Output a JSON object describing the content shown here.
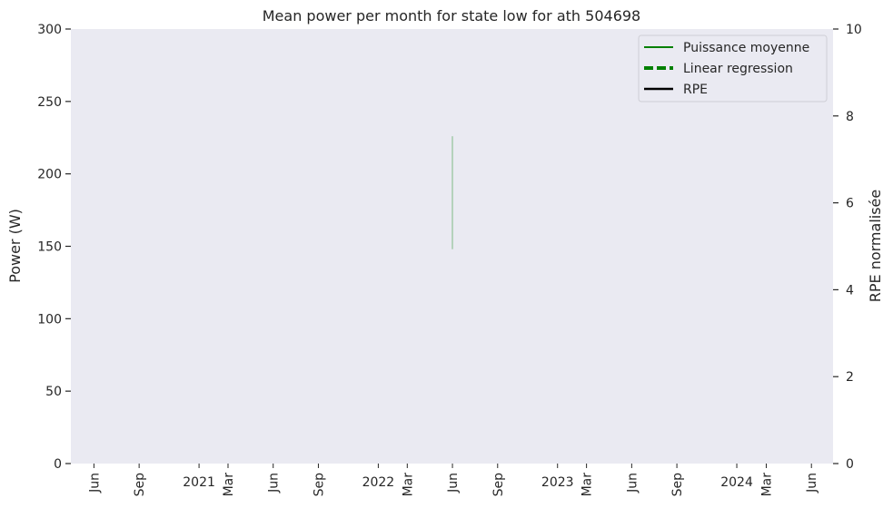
{
  "chart_data": {
    "type": "line",
    "title": "Mean power per month for state low for ath 504698",
    "ylabel": "Power (W)",
    "y2label": "RPE normalisée",
    "ylim": [
      0,
      300
    ],
    "y2lim": [
      0,
      10
    ],
    "yticks": [
      "0",
      "50",
      "100",
      "150",
      "200",
      "250",
      "300"
    ],
    "y2ticks": [
      "0",
      "2",
      "4",
      "6",
      "8",
      "10"
    ],
    "x_range": [
      "2020-04-15",
      "2024-07-15"
    ],
    "xticks": [
      {
        "date": "2020-06-01",
        "label": "Jun",
        "rotated": true
      },
      {
        "date": "2020-09-01",
        "label": "Sep",
        "rotated": true
      },
      {
        "date": "2021-01-01",
        "label": "2021",
        "rotated": false
      },
      {
        "date": "2021-03-01",
        "label": "Mar",
        "rotated": true
      },
      {
        "date": "2021-06-01",
        "label": "Jun",
        "rotated": true
      },
      {
        "date": "2021-09-01",
        "label": "Sep",
        "rotated": true
      },
      {
        "date": "2022-01-01",
        "label": "2022",
        "rotated": false
      },
      {
        "date": "2022-03-01",
        "label": "Mar",
        "rotated": true
      },
      {
        "date": "2022-06-01",
        "label": "Jun",
        "rotated": true
      },
      {
        "date": "2022-09-01",
        "label": "Sep",
        "rotated": true
      },
      {
        "date": "2023-01-01",
        "label": "2023",
        "rotated": false
      },
      {
        "date": "2023-03-01",
        "label": "Mar",
        "rotated": true
      },
      {
        "date": "2023-06-01",
        "label": "Jun",
        "rotated": true
      },
      {
        "date": "2023-09-01",
        "label": "Sep",
        "rotated": true
      },
      {
        "date": "2024-01-01",
        "label": "2024",
        "rotated": false
      },
      {
        "date": "2024-03-01",
        "label": "Mar",
        "rotated": true
      },
      {
        "date": "2024-06-01",
        "label": "Jun",
        "rotated": true
      }
    ],
    "series": [
      {
        "name": "Puissance moyenne",
        "color": "#008000",
        "style": "solid",
        "axis": "left",
        "points": [
          {
            "x": "2022-06-01",
            "y": 148
          },
          {
            "x": "2022-06-01",
            "y": 226
          }
        ]
      },
      {
        "name": "Linear regression",
        "color": "#008000",
        "style": "dashed",
        "axis": "left",
        "points": []
      },
      {
        "name": "RPE",
        "color": "#000000",
        "style": "solid",
        "axis": "right",
        "points": []
      }
    ],
    "legend_position": "top-right",
    "grid": false,
    "background": "#eaeaf2"
  }
}
